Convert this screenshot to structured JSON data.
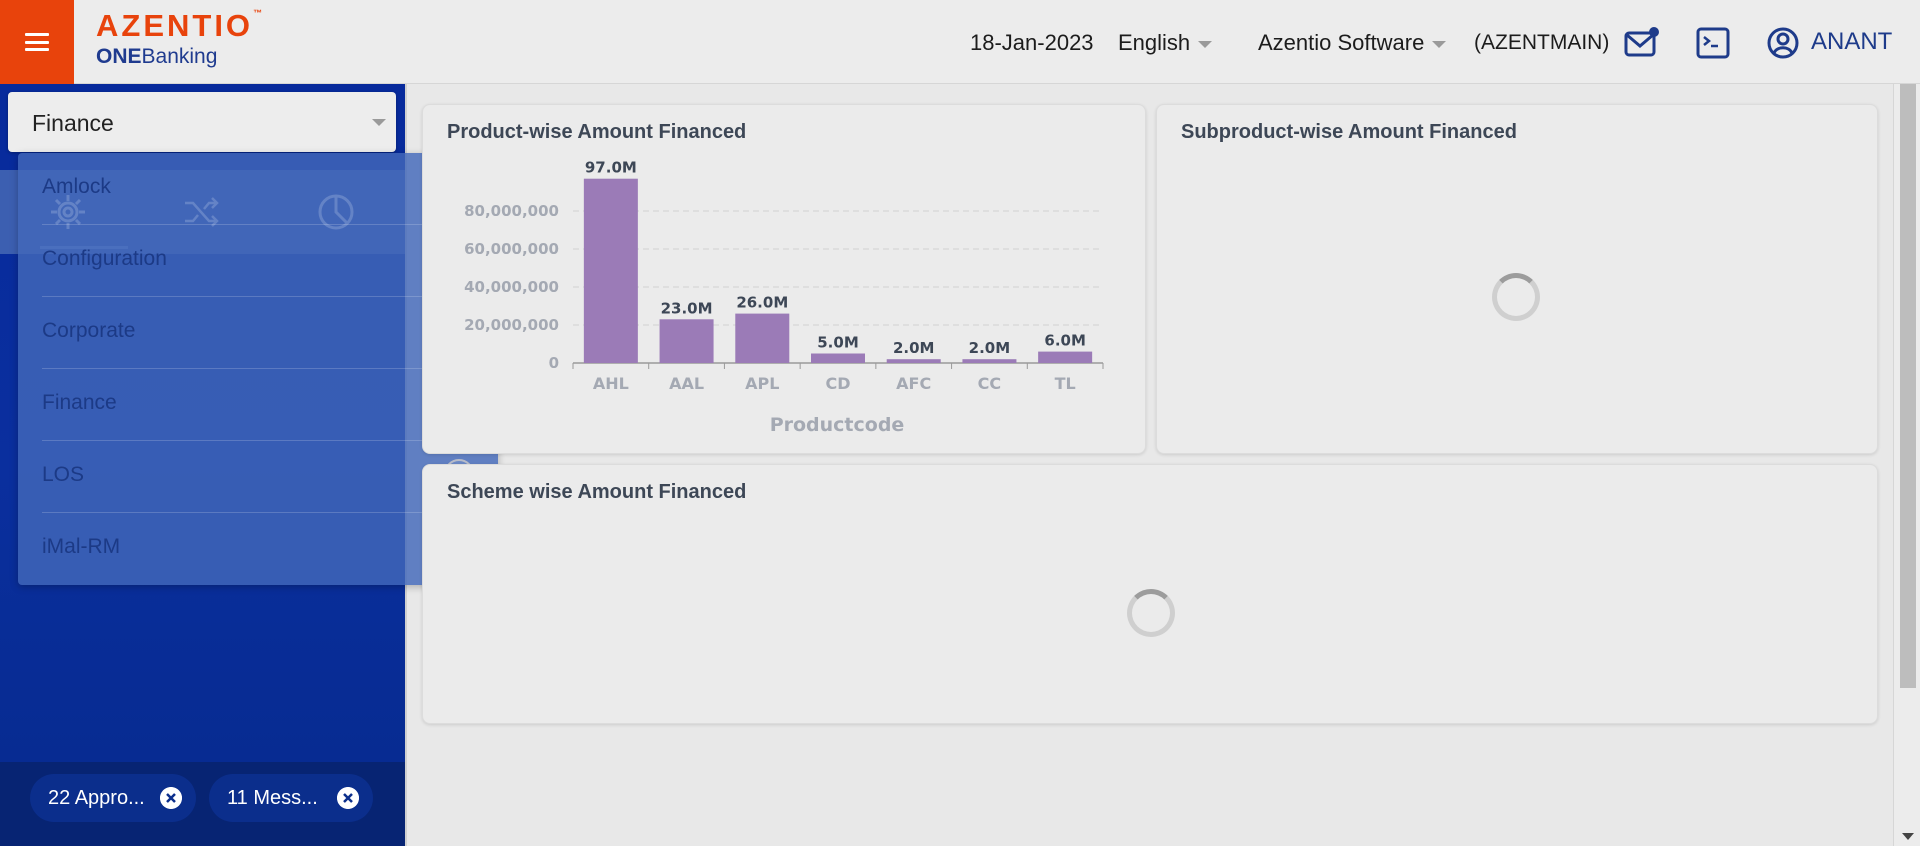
{
  "header": {
    "brand": "AZENTIO",
    "brand_mark": "™",
    "product_bold": "ONE",
    "product_rest": "Banking",
    "date": "18-Jan-2023",
    "language": "English",
    "company": "Azentio Software",
    "entity": "(AZENTMAIN)",
    "user": "ANANT",
    "icons": {
      "menu": "hamburger-icon",
      "mail": "mail-notification-icon",
      "terminal": "terminal-icon",
      "user": "user-circle-icon"
    }
  },
  "sidebar": {
    "module_selected": "Finance",
    "module_options": [
      {
        "label": "Amlock",
        "checked": false
      },
      {
        "label": "Configuration",
        "checked": false
      },
      {
        "label": "Corporate",
        "checked": false
      },
      {
        "label": "Finance",
        "checked": true
      },
      {
        "label": "LOS",
        "checked": false
      },
      {
        "label": "iMal-RM",
        "checked": false
      }
    ],
    "strip_icons": [
      "gear-icon",
      "shuffle-icon",
      "pie-chart-icon"
    ],
    "chips": [
      {
        "label": "22 Appro..."
      },
      {
        "label": "11 Mess..."
      }
    ]
  },
  "cards": {
    "product": {
      "title": "Product-wise Amount Financed"
    },
    "subproduct": {
      "title": "Subproduct-wise Amount Financed"
    },
    "scheme": {
      "title": "Scheme wise Amount Financed"
    }
  },
  "chart_data": {
    "type": "bar",
    "title": "Product-wise Amount Financed",
    "xlabel": "Productcode",
    "ylabel": "",
    "categories": [
      "AHL",
      "AAL",
      "APL",
      "CD",
      "AFC",
      "CC",
      "TL"
    ],
    "values": [
      97000000,
      23000000,
      26000000,
      5000000,
      2000000,
      2000000,
      6000000
    ],
    "data_labels": [
      "97.0M",
      "23.0M",
      "26.0M",
      "5.0M",
      "2.0M",
      "2.0M",
      "6.0M"
    ],
    "yticks": [
      0,
      20000000,
      40000000,
      60000000,
      80000000
    ],
    "ytick_labels": [
      "0",
      "20,000,000",
      "40,000,000",
      "60,000,000",
      "80,000,000"
    ],
    "ylim": [
      0,
      100000000
    ],
    "grid": true,
    "bar_color": "#9b7bb7"
  },
  "colors": {
    "brand_orange": "#e8430c",
    "brand_blue": "#1f3b8f",
    "sidebar_blue": "#0a2f9e"
  }
}
